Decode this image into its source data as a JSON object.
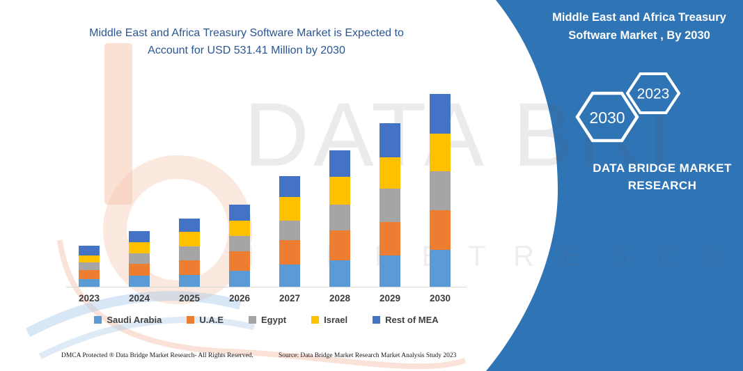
{
  "chart": {
    "title_lines": [
      "Middle East and Africa Treasury Software Market  is Expected to",
      "Account for USD 531.41 Million by 2030"
    ],
    "title_color": "#2A5592"
  },
  "chart_data": {
    "type": "bar",
    "stacked": true,
    "unit": "USD Million",
    "categories": [
      "2023",
      "2024",
      "2025",
      "2026",
      "2027",
      "2028",
      "2029",
      "2030"
    ],
    "series": [
      {
        "name": "Saudi Arabia",
        "color": "#5B9BD5",
        "values": [
          21,
          31,
          33,
          44,
          61,
          73,
          86,
          102
        ]
      },
      {
        "name": "U.A.E",
        "color": "#ED7D31",
        "values": [
          25,
          33,
          40,
          54,
          67,
          83,
          92,
          109
        ]
      },
      {
        "name": "Egypt",
        "color": "#A5A5A5",
        "values": [
          21,
          29,
          38,
          42,
          54,
          71,
          92,
          108
        ]
      },
      {
        "name": "Israel",
        "color": "#FFC000",
        "values": [
          19,
          29,
          40,
          42,
          65,
          77,
          88,
          104
        ]
      },
      {
        "name": "Rest of MEA",
        "color": "#4472C4",
        "values": [
          27,
          31,
          37,
          44,
          58,
          73,
          94,
          108.41
        ]
      }
    ],
    "totals_estimated": [
      113,
      153,
      188,
      226,
      305,
      377,
      452,
      531.41
    ],
    "stated_value_2030": 531.41,
    "y_axis_visible": false,
    "grid": false,
    "legend_position": "bottom",
    "axis_line_color": "#D9D9D9"
  },
  "right_panel": {
    "title": "Middle East and Africa Treasury Software Market , By 2030",
    "hexagon_front_label": "2030",
    "hexagon_back_label": "2023",
    "brand": "DATA BRIDGE MARKET RESEARCH",
    "color": "#2F74B5"
  },
  "watermark": {
    "text_primary": "DATA BRI",
    "text_secondary": "M A R K E T   R E S E A R C H"
  },
  "footer": {
    "left": "DMCA Protected ® Data Bridge Market Research-  All Rights Reserved.",
    "right": "Source: Data Bridge Market Research  Market Analysis Study 2023"
  }
}
